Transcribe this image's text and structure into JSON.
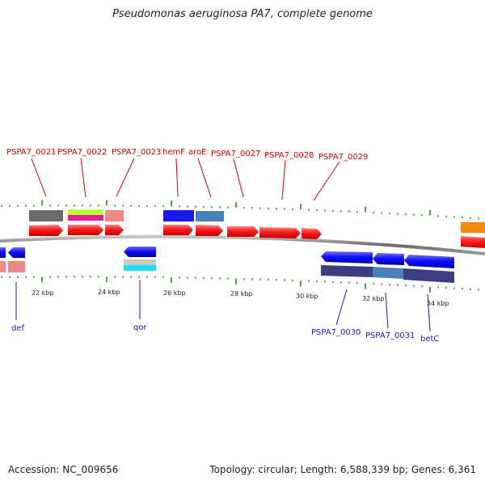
{
  "title": "Pseudomonas aeruginosa PA7, complete genome",
  "footer": {
    "accession": "Accession: NC_009656",
    "summary": "Topology: circular; Length: 6,588,339 bp; Genes: 6,361"
  },
  "colors": {
    "forward_gene": "#ff0000",
    "reverse_gene": "#0000ff",
    "forward_label": "#cc0000",
    "reverse_label": "#1a1aa0",
    "tick": "#2a8a1a",
    "backbone": "#7a7a7a"
  },
  "scale_labels": [
    "22 kbp",
    "24 kbp",
    "26 kbp",
    "28 kbp",
    "30 kbp",
    "32 kbp",
    "34 kbp"
  ],
  "forward_labels": [
    "PSPA7_0021",
    "PSPA7_0022",
    "PSPA7_0023",
    "hemF",
    "aroE",
    "PSPA7_0027",
    "PSPA7_0028",
    "PSPA7_0029"
  ],
  "reverse_labels": [
    "def",
    "qor",
    "PSPA7_0030",
    "PSPA7_0031",
    "betC"
  ],
  "annotation_tracks": {
    "forward": [
      "dark-gray",
      "lime-magenta",
      "salmon",
      "blue",
      "steel-blue"
    ],
    "reverse": [
      "salmon",
      "gray-cyan",
      "dark-slate",
      "steel-blue",
      "dark-slate"
    ],
    "offscreen_right": "orange"
  }
}
